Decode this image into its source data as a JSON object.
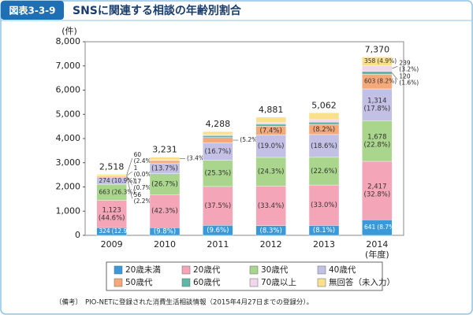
{
  "chart_data": {
    "type": "bar",
    "stacked": true,
    "badge": "図表3-3-9",
    "title": "SNSに関連する相談の年齢別割合",
    "y_unit": "(件)",
    "x_unit": "(年度)",
    "note_label": "（備考）",
    "note": "PIO-NETに登録された消費生活相談情報（2015年4月27日までの登録分）。",
    "categories": [
      "2009",
      "2010",
      "2011",
      "2012",
      "2013",
      "2014"
    ],
    "totals": [
      2518,
      3231,
      4288,
      4881,
      5062,
      7370
    ],
    "total_labels": [
      "2,518",
      "3,231",
      "4,288",
      "4,881",
      "5,062",
      "7,370"
    ],
    "ylim": [
      0,
      8000
    ],
    "yticks": [
      0,
      {
        "value": 1000,
        "label": "1,000"
      },
      {
        "value": 2000,
        "label": "2,000"
      },
      {
        "value": 3000,
        "label": "3,000"
      },
      {
        "value": 4000,
        "label": "4,000"
      },
      {
        "value": 5000,
        "label": "5,000"
      },
      {
        "value": 6000,
        "label": "6,000"
      },
      {
        "value": 7000,
        "label": "7,000"
      },
      {
        "value": 8000,
        "label": "8,000"
      }
    ],
    "series": [
      {
        "name": "20歳未満",
        "color": "#3a9ad9",
        "values": [
          324,
          317,
          412,
          405,
          410,
          641
        ],
        "value_labels": [
          "324",
          null,
          null,
          null,
          null,
          "641"
        ],
        "share_labels": [
          "(12.9%)",
          "(9.8%)",
          "(9.6%)",
          "(8.3%)",
          "(8.1%)",
          "(8.7%)"
        ]
      },
      {
        "name": "20歳代",
        "color": "#f4a6b8",
        "values": [
          1123,
          1367,
          1608,
          1630,
          1670,
          2417
        ],
        "value_labels": [
          "1,123",
          null,
          null,
          null,
          null,
          "2,417"
        ],
        "share_labels": [
          "(44.6%)",
          "(42.3%)",
          "(37.5%)",
          "(33.4%)",
          "(33.0%)",
          "(32.8%)"
        ]
      },
      {
        "name": "30歳代",
        "color": "#a9d68c",
        "values": [
          663,
          863,
          1085,
          1186,
          1144,
          1678
        ],
        "value_labels": [
          "663",
          null,
          null,
          null,
          null,
          "1,678"
        ],
        "share_labels": [
          "(26.3%)",
          "(26.7%)",
          "(25.3%)",
          "(24.3%)",
          "(22.6%)",
          "(22.8%)"
        ]
      },
      {
        "name": "40歳代",
        "color": "#c2c0e4",
        "values": [
          274,
          443,
          716,
          927,
          942,
          1314
        ],
        "value_labels": [
          "274",
          null,
          null,
          null,
          null,
          "1,314"
        ],
        "share_labels": [
          "(10.9%)",
          "(13.7%)",
          "(16.7%)",
          "(19.0%)",
          "(18.6%)",
          "(17.8%)"
        ]
      },
      {
        "name": "50歳代",
        "color": "#f5a878",
        "values": [
          56,
          100,
          223,
          361,
          415,
          603
        ],
        "value_labels": [
          "56",
          null,
          null,
          null,
          null,
          "603"
        ],
        "share_labels": [
          "(2.2%)",
          null,
          "(5.2%)",
          "(7.4%)",
          "(8.2%)",
          "(8.2%)"
        ]
      },
      {
        "name": "60歳代",
        "color": "#5fb8a6",
        "values": [
          17,
          25,
          80,
          90,
          100,
          120
        ],
        "value_labels": [
          "17",
          null,
          null,
          null,
          null,
          "120"
        ],
        "share_labels": [
          "(0.7%)",
          null,
          null,
          null,
          null,
          "(1.6%)"
        ]
      },
      {
        "name": "70歳以上",
        "color": "#f2d6ee",
        "values": [
          1,
          6,
          40,
          80,
          100,
          239
        ],
        "value_labels": [
          "1",
          null,
          null,
          null,
          null,
          "239"
        ],
        "share_labels": [
          "(0.0%)",
          null,
          null,
          null,
          null,
          "(3.2%)"
        ]
      },
      {
        "name": "無回答（未入力）",
        "color": "#f9e08c",
        "values": [
          60,
          110,
          124,
          202,
          281,
          358
        ],
        "value_labels": [
          "60",
          null,
          null,
          null,
          null,
          "358"
        ],
        "share_labels": [
          "(2.4%)",
          "(3.4%)",
          null,
          null,
          null,
          "(4.9%)"
        ]
      }
    ]
  }
}
